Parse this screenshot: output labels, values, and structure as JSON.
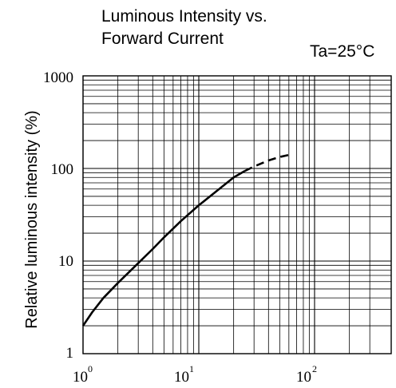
{
  "chart_data": {
    "type": "line",
    "title_lines": [
      "Luminous Intensity vs.",
      "Forward Current"
    ],
    "annotation": "Ta=25°C",
    "ylabel": "Relative luminous intensity  (%)",
    "xlabel": "",
    "x_scale": "log",
    "y_scale": "log",
    "xlim": [
      1,
      300
    ],
    "ylim": [
      1,
      1000
    ],
    "grid": true,
    "y_tick_labels": [
      "1",
      "10",
      "100",
      "1000"
    ],
    "x_tick_labels": [
      {
        "base": "10",
        "exp": "0"
      },
      {
        "base": "10",
        "exp": "1"
      },
      {
        "base": "10",
        "exp": "2"
      }
    ],
    "series": [
      {
        "style": "solid",
        "points": [
          [
            1,
            2
          ],
          [
            1.2,
            2.8
          ],
          [
            1.5,
            4
          ],
          [
            2,
            5.8
          ],
          [
            3,
            9.5
          ],
          [
            4,
            13.5
          ],
          [
            5,
            18
          ],
          [
            7,
            27
          ],
          [
            10,
            40
          ],
          [
            15,
            60
          ],
          [
            20,
            80
          ],
          [
            25,
            94
          ]
        ]
      },
      {
        "style": "dashed",
        "points": [
          [
            25,
            94
          ],
          [
            30,
            105
          ],
          [
            40,
            122
          ],
          [
            50,
            133
          ],
          [
            60,
            140
          ]
        ]
      }
    ]
  }
}
